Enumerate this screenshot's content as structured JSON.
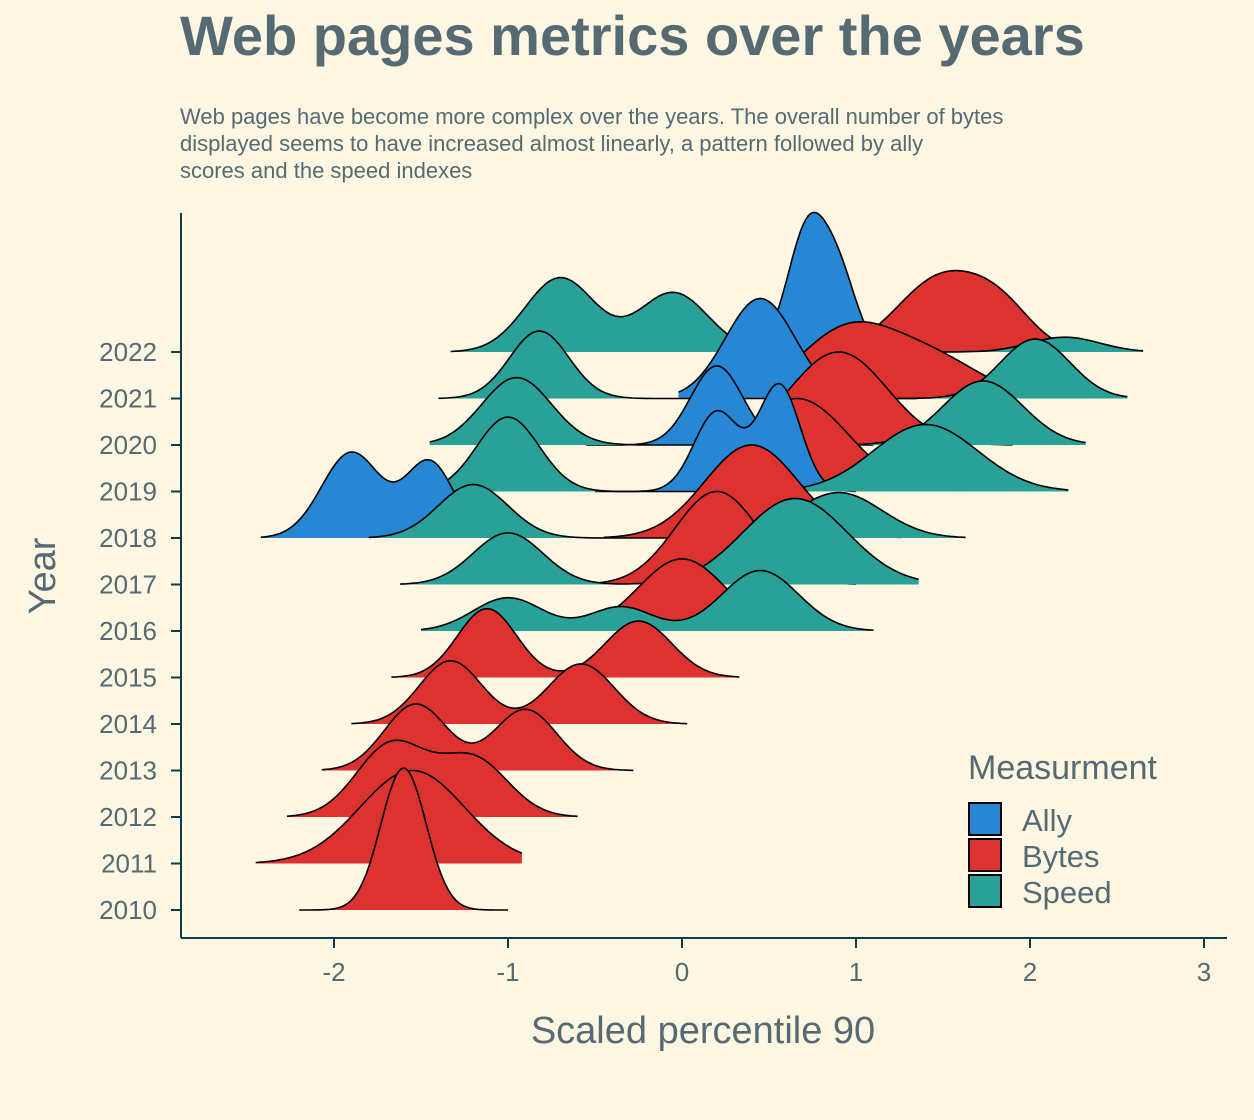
{
  "chart_data": {
    "type": "ridgeline",
    "title": "Web pages metrics over the years",
    "subtitle_lines": [
      "Web pages have become more complex over the years. The overall number of bytes",
      "displayed seems to have increased almost linearly, a pattern followed by ally",
      "scores and the speed indexes"
    ],
    "xlabel": "Scaled percentile 90",
    "ylabel": "Year",
    "xlim": [
      -2.9,
      3.1
    ],
    "x_ticks": [
      -2,
      -1,
      0,
      1,
      2,
      3
    ],
    "x_tick_labels": [
      "-2",
      "-1",
      "0",
      "1",
      "2",
      "3"
    ],
    "categories": [
      "2010",
      "2011",
      "2012",
      "2013",
      "2014",
      "2015",
      "2016",
      "2017",
      "2018",
      "2019",
      "2020",
      "2021",
      "2022"
    ],
    "legend": {
      "title": "Measurment",
      "position": "bottom-right",
      "entries": [
        "Ally",
        "Bytes",
        "Speed"
      ]
    },
    "colors": {
      "Ally": "#2787d4",
      "Bytes": "#dd3230",
      "Speed": "#2aa198"
    },
    "series": [
      {
        "name": "Bytes",
        "year": "2010",
        "range": [
          -2.2,
          -1.0
        ],
        "peak_height": 3.05,
        "modes": [
          [
            -1.6,
            0.13,
            1.0
          ]
        ]
      },
      {
        "name": "Bytes",
        "year": "2011",
        "range": [
          -2.45,
          -0.92
        ],
        "peak_height": 2.0,
        "modes": [
          [
            -1.55,
            0.3,
            1.0
          ]
        ]
      },
      {
        "name": "Bytes",
        "year": "2012",
        "range": [
          -2.27,
          -0.6
        ],
        "peak_height": 1.65,
        "modes": [
          [
            -1.67,
            0.2,
            1.0
          ],
          [
            -1.2,
            0.2,
            0.8
          ]
        ]
      },
      {
        "name": "Bytes",
        "year": "2013",
        "range": [
          -2.07,
          -0.28
        ],
        "peak_height": 1.43,
        "modes": [
          [
            -1.53,
            0.18,
            1.0
          ],
          [
            -0.9,
            0.18,
            0.92
          ]
        ]
      },
      {
        "name": "Bytes",
        "year": "2014",
        "range": [
          -1.9,
          0.03
        ],
        "peak_height": 1.36,
        "modes": [
          [
            -1.33,
            0.18,
            1.0
          ],
          [
            -0.58,
            0.19,
            0.95
          ]
        ]
      },
      {
        "name": "Bytes",
        "year": "2015",
        "range": [
          -1.67,
          0.33
        ],
        "peak_height": 1.48,
        "modes": [
          [
            -1.12,
            0.17,
            1.0
          ],
          [
            -0.25,
            0.19,
            0.82
          ]
        ]
      },
      {
        "name": "Bytes",
        "year": "2016",
        "range": [
          -0.67,
          0.72
        ],
        "peak_height": 1.55,
        "modes": [
          [
            0.0,
            0.25,
            1.0
          ]
        ]
      },
      {
        "name": "Bytes",
        "year": "2017",
        "range": [
          -0.48,
          1.0
        ],
        "peak_height": 2.0,
        "modes": [
          [
            0.2,
            0.24,
            1.0
          ]
        ]
      },
      {
        "name": "Bytes",
        "year": "2018",
        "range": [
          -0.45,
          1.26
        ],
        "peak_height": 2.0,
        "modes": [
          [
            0.4,
            0.27,
            1.0
          ]
        ]
      },
      {
        "name": "Bytes",
        "year": "2019",
        "range": [
          -0.05,
          1.6
        ],
        "peak_height": 2.0,
        "modes": [
          [
            0.66,
            0.3,
            1.0
          ]
        ]
      },
      {
        "name": "Bytes",
        "year": "2020",
        "range": [
          0.15,
          1.9
        ],
        "peak_height": 2.0,
        "modes": [
          [
            0.9,
            0.28,
            1.0
          ]
        ]
      },
      {
        "name": "Bytes",
        "year": "2021",
        "range": [
          0.35,
          2.1
        ],
        "peak_height": 1.65,
        "modes": [
          [
            0.95,
            0.28,
            1.0
          ],
          [
            1.45,
            0.28,
            0.55
          ]
        ]
      },
      {
        "name": "Bytes",
        "year": "2022",
        "range": [
          0.6,
          2.2
        ],
        "peak_height": 1.75,
        "modes": [
          [
            1.5,
            0.26,
            1.0
          ],
          [
            1.85,
            0.18,
            0.4
          ]
        ]
      },
      {
        "name": "Ally",
        "year": "2018",
        "range": [
          -2.42,
          -0.9
        ],
        "peak_height": 1.85,
        "modes": [
          [
            -1.9,
            0.17,
            0.85
          ],
          [
            -1.45,
            0.14,
            0.75
          ]
        ]
      },
      {
        "name": "Ally",
        "year": "2019",
        "range": [
          -0.5,
          1.0
        ],
        "peak_height": 2.32,
        "modes": [
          [
            0.2,
            0.13,
            0.75
          ],
          [
            0.56,
            0.12,
            1.0
          ]
        ]
      },
      {
        "name": "Ally",
        "year": "2020",
        "range": [
          -0.55,
          1.1
        ],
        "peak_height": 1.7,
        "modes": [
          [
            0.2,
            0.15,
            1.0
          ]
        ]
      },
      {
        "name": "Ally",
        "year": "2021",
        "range": [
          -0.02,
          1.35
        ],
        "peak_height": 2.15,
        "modes": [
          [
            0.45,
            0.2,
            1.0
          ]
        ]
      },
      {
        "name": "Ally",
        "year": "2022",
        "range": [
          0.35,
          1.35
        ],
        "peak_height": 3.0,
        "modes": [
          [
            0.73,
            0.12,
            1.0
          ],
          [
            0.92,
            0.1,
            0.45
          ]
        ]
      },
      {
        "name": "Speed",
        "year": "2016",
        "range": [
          -1.5,
          1.1
        ],
        "peak_height": 1.3,
        "modes": [
          [
            -1.0,
            0.2,
            0.55
          ],
          [
            -0.35,
            0.18,
            0.4
          ],
          [
            0.45,
            0.22,
            1.0
          ]
        ]
      },
      {
        "name": "Speed",
        "year": "2017",
        "range": [
          -1.62,
          1.36
        ],
        "peak_height": 1.85,
        "modes": [
          [
            -1.0,
            0.2,
            0.6
          ],
          [
            0.65,
            0.3,
            1.0
          ]
        ]
      },
      {
        "name": "Speed",
        "year": "2018",
        "range": [
          -1.8,
          1.63
        ],
        "peak_height": 1.15,
        "modes": [
          [
            -1.2,
            0.2,
            1.0
          ],
          [
            0.9,
            0.25,
            0.85
          ]
        ]
      },
      {
        "name": "Speed",
        "year": "2019",
        "range": [
          -1.4,
          2.22
        ],
        "peak_height": 1.6,
        "modes": [
          [
            -1.0,
            0.18,
            1.0
          ],
          [
            1.4,
            0.3,
            0.9
          ]
        ]
      },
      {
        "name": "Speed",
        "year": "2020",
        "range": [
          -1.45,
          2.32
        ],
        "peak_height": 1.45,
        "modes": [
          [
            -0.95,
            0.2,
            1.0
          ],
          [
            1.73,
            0.23,
            0.95
          ]
        ]
      },
      {
        "name": "Speed",
        "year": "2021",
        "range": [
          -1.4,
          2.56
        ],
        "peak_height": 1.45,
        "modes": [
          [
            -0.82,
            0.17,
            1.0
          ],
          [
            2.03,
            0.2,
            0.88
          ]
        ]
      },
      {
        "name": "Speed",
        "year": "2022",
        "range": [
          -1.33,
          2.65
        ],
        "peak_height": 1.6,
        "modes": [
          [
            -0.7,
            0.2,
            1.0
          ],
          [
            -0.05,
            0.2,
            0.8
          ],
          [
            2.2,
            0.2,
            0.2
          ]
        ]
      }
    ]
  }
}
